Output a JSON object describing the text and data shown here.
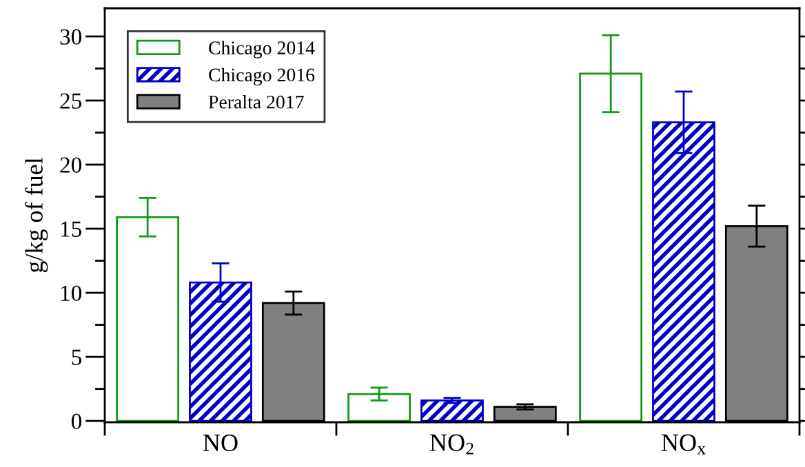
{
  "chart_data": {
    "type": "bar",
    "ylabel": "g/kg of fuel",
    "categories": [
      "NO",
      "NO$_{2}$",
      "NO$_{x}$"
    ],
    "series": [
      {
        "name": "Chicago 2014",
        "color": "#109a10",
        "values": [
          15.9,
          2.1,
          27.1
        ],
        "errors": [
          1.5,
          0.5,
          3.0
        ]
      },
      {
        "name": "Chicago 2016",
        "color": "#0000c8",
        "values": [
          10.8,
          1.6,
          23.3
        ],
        "errors": [
          1.5,
          0.2,
          2.4
        ]
      },
      {
        "name": "Peralta 2017",
        "color": "#808080",
        "values": [
          9.2,
          1.1,
          15.2
        ],
        "errors": [
          0.9,
          0.2,
          1.6
        ]
      }
    ],
    "ylim": [
      -0.1,
      32.2
    ],
    "yticks": [
      0,
      5,
      10,
      15,
      20,
      25,
      30
    ],
    "grid": false,
    "legend": "top left"
  }
}
